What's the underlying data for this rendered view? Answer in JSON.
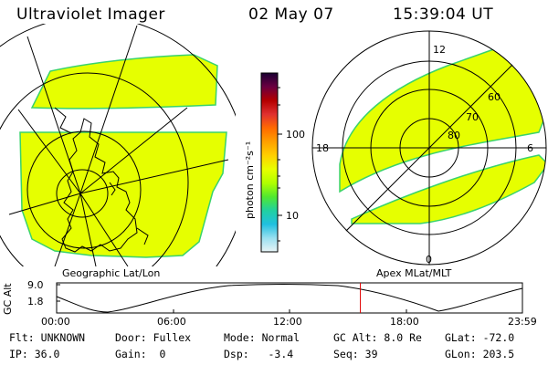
{
  "header": {
    "instrument": "Ultraviolet Imager",
    "date": "02 May 07",
    "time": "15:39:04 UT"
  },
  "left_panel": {
    "caption": "Geographic Lat/Lon"
  },
  "right_panel": {
    "caption": "Apex MLat/MLT",
    "mlt_labels": {
      "top": "12",
      "left": "18",
      "right": "6",
      "bottom": "0"
    },
    "mlat_labels": [
      "60",
      "70",
      "80"
    ]
  },
  "colorbar": {
    "unit_label": "photon cm⁻²s⁻¹",
    "tick_labels": [
      "100",
      "10"
    ],
    "colors_top_to_bottom": [
      "#1a0033",
      "#6a0040",
      "#b40000",
      "#e03030",
      "#ff6a00",
      "#ffa000",
      "#ffd000",
      "#e8ff00",
      "#b0ff00",
      "#50e830",
      "#20d0a0",
      "#20c0e0",
      "#9ae0f0",
      "#e8f4f6"
    ],
    "fill_color": "#e6ff00",
    "fill_edge_color": "#39d36b"
  },
  "altitude_plot": {
    "ylabel": "GC Alt",
    "y_ticks": [
      "9.0",
      "1.8"
    ],
    "x_ticks": [
      "00:00",
      "06:00",
      "12:00",
      "18:00",
      "23:59"
    ],
    "current_time_marker_hours": 15.65,
    "marker_color": "#e00000"
  },
  "status": {
    "row1": [
      {
        "label": "Flt:",
        "value": "UNKNOWN"
      },
      {
        "label": "Door:",
        "value": "Fullex"
      },
      {
        "label": "Mode:",
        "value": "Normal"
      },
      {
        "label": "GC Alt:",
        "value": "8.0 Re"
      },
      {
        "label": "GLat:",
        "value": "-72.0"
      }
    ],
    "row2": [
      {
        "label": "IP:",
        "value": "36.0"
      },
      {
        "label": "Gain:",
        "value": "0"
      },
      {
        "label": "Dsp:",
        "value": "-3.4"
      },
      {
        "label": "Seq:",
        "value": "39"
      },
      {
        "label": "GLon:",
        "value": "203.5"
      }
    ]
  }
}
